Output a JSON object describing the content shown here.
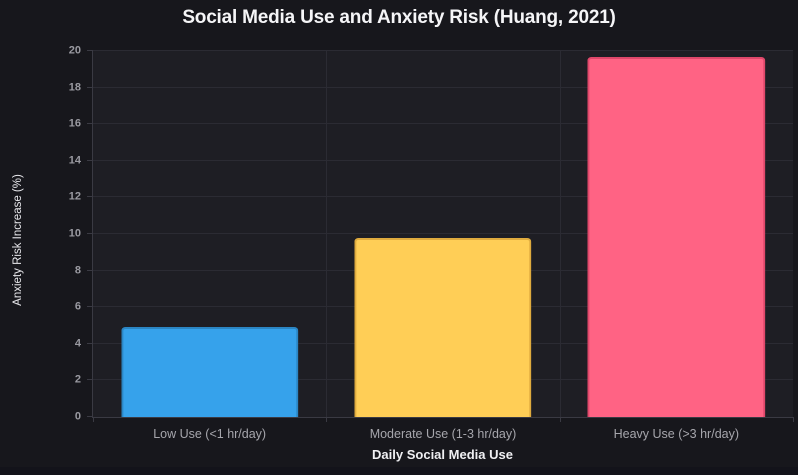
{
  "chart_data": {
    "type": "bar",
    "title": "Social Media Use and Anxiety Risk (Huang, 2021)",
    "xlabel": "Daily Social Media Use",
    "ylabel": "Anxiety Risk Increase (%)",
    "categories": [
      "Low Use (<1 hr/day)",
      "Moderate Use (1-3 hr/day)",
      "Heavy Use (>3 hr/day)"
    ],
    "values": [
      4.9,
      9.8,
      19.7
    ],
    "ylim": [
      0,
      20
    ],
    "yticks": [
      0,
      2,
      4,
      6,
      8,
      10,
      12,
      14,
      16,
      18,
      20
    ],
    "grid": true,
    "legend": "none",
    "bar_colors": [
      "#36a2eb",
      "#ffce56",
      "#ff6384"
    ],
    "bar_border_colors": [
      "#2b86c4",
      "#dfab3e",
      "#e0486b"
    ]
  },
  "theme": {
    "page_background": "#17171c",
    "plot_background": "#1e1e24",
    "gridline_color": "#2b2b33",
    "axis_line_color": "#3a3a43",
    "tick_text_color": "#9a9aa1",
    "category_text_color": "#a6a6ac",
    "title_text_color": "#f5f5f7",
    "axis_title_text_color": "#e8e8ec"
  }
}
